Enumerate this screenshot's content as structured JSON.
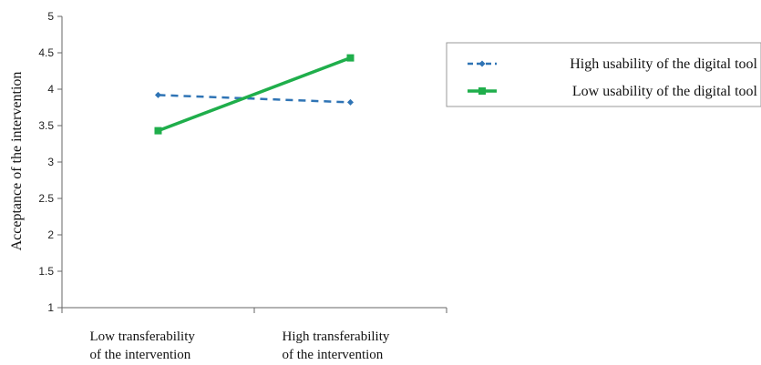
{
  "chart_data": {
    "type": "line",
    "title": "",
    "xlabel": "",
    "ylabel": "Acceptance of the intervention",
    "categories": [
      [
        "Low transferability",
        "of the intervention"
      ],
      [
        "High transferability",
        "of the intervention"
      ]
    ],
    "ylim": [
      1,
      5
    ],
    "yticks": [
      "1",
      "1.5",
      "2",
      "2.5",
      "3",
      "3.5",
      "4",
      "4.5",
      "5"
    ],
    "grid": false,
    "legend_position": "right",
    "series": [
      {
        "name": "High usability of the digital tool",
        "values": [
          3.92,
          3.82
        ],
        "color": "#2f74b5",
        "style": "dashed",
        "marker": "diamond"
      },
      {
        "name": "Low usability of the digital tool",
        "values": [
          3.43,
          4.43
        ],
        "color": "#1fae4b",
        "style": "solid",
        "marker": "square"
      }
    ]
  }
}
